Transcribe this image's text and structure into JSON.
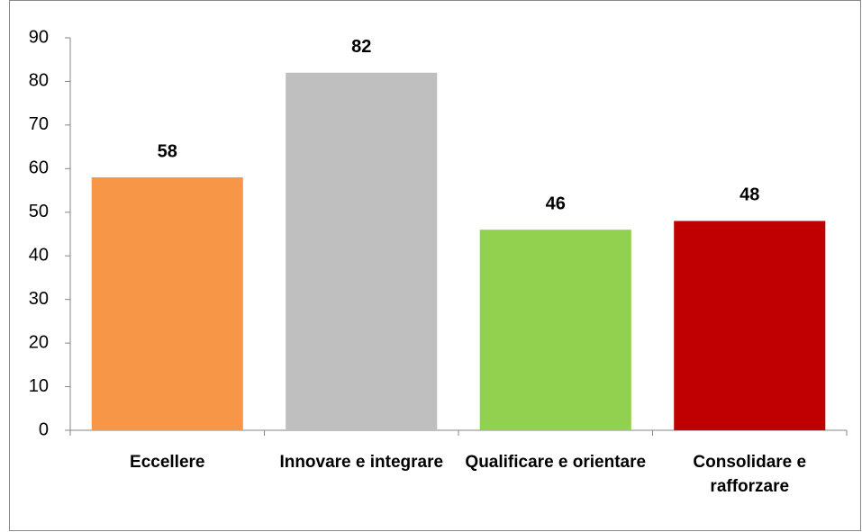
{
  "chart_data": {
    "type": "bar",
    "categories": [
      "Eccellere",
      "Innovare e integrare",
      "Qualificare e orientare",
      "Consolidare e rafforzare"
    ],
    "values": [
      58,
      82,
      46,
      48
    ],
    "colors": [
      "#f79646",
      "#bfbfbf",
      "#92d050",
      "#c00000"
    ],
    "ylim": [
      0,
      90
    ],
    "yticks": [
      0,
      10,
      20,
      30,
      40,
      50,
      60,
      70,
      80,
      90
    ],
    "grid": false
  }
}
